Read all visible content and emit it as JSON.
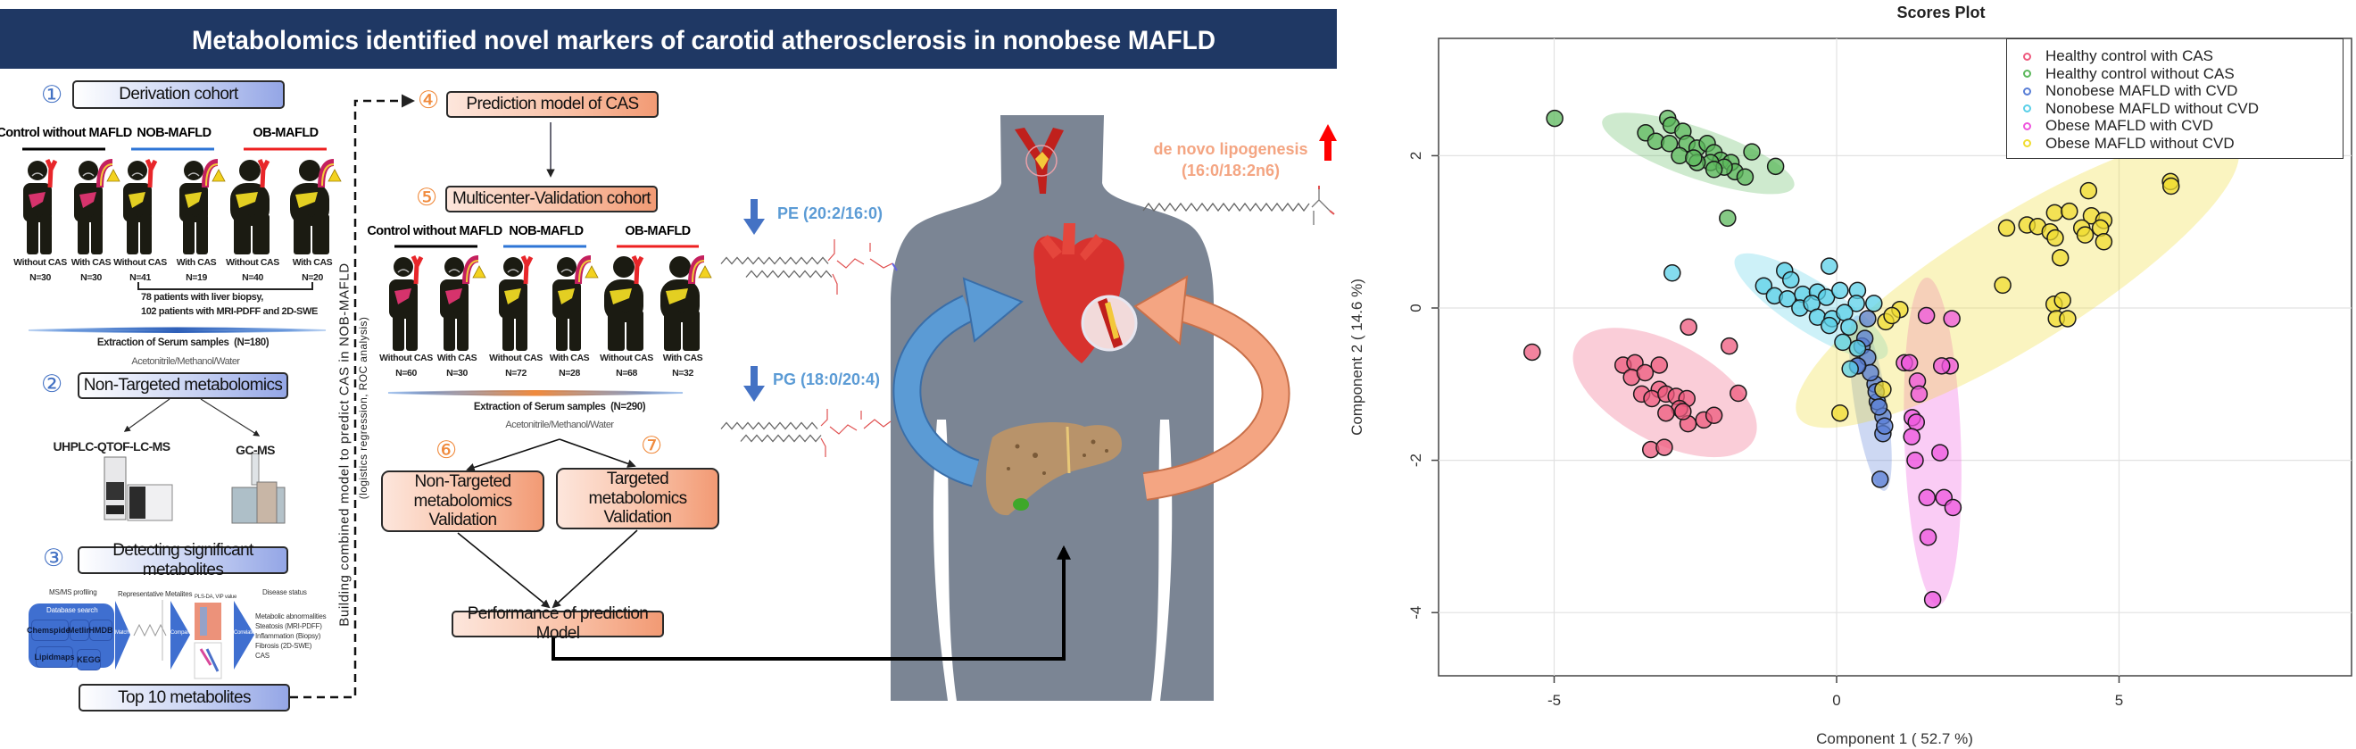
{
  "title": "Metabolomics identified novel markers of carotid atherosclerosis in nonobese MAFLD",
  "derivation": {
    "num": "①",
    "title": "Derivation cohort",
    "groups": [
      {
        "name": "Control without MAFLD",
        "color": "#000000"
      },
      {
        "name": "NOB-MAFLD",
        "color": "#2e75d6"
      },
      {
        "name": "OB-MAFLD",
        "color": "#ee2020"
      }
    ],
    "subjects": [
      {
        "label": "Without CAS",
        "n": "N=30",
        "liver": "#d6336c",
        "obese": false,
        "cas": false
      },
      {
        "label": "With CAS",
        "n": "N=30",
        "liver": "#d6336c",
        "obese": false,
        "cas": true
      },
      {
        "label": "Without CAS",
        "n": "N=41",
        "liver": "#e3cf22",
        "obese": false,
        "cas": false
      },
      {
        "label": "With CAS",
        "n": "N=19",
        "liver": "#e3cf22",
        "obese": false,
        "cas": true
      },
      {
        "label": "Without CAS",
        "n": "N=40",
        "liver": "#e3cf22",
        "obese": true,
        "cas": false
      },
      {
        "label": "With CAS",
        "n": "N=20",
        "liver": "#e3cf22",
        "obese": true,
        "cas": true
      }
    ],
    "note": [
      "78 patients with liver biopsy,",
      "102 patients with MRI-PDFF and 2D-SWE"
    ],
    "extraction": "Extraction of Serum samples",
    "extraction_n": "(N=180)",
    "solvent": "Acetonitrile/Methanol/Water"
  },
  "step2": {
    "num": "②",
    "title": "Non-Targeted metabolomics",
    "instruments": [
      "UHPLC-QTOF-LC-MS",
      "GC-MS"
    ]
  },
  "step3": {
    "num": "③",
    "title": "Detecting significant metabolites",
    "workflow": {
      "ms_label": "MS/MS profiling",
      "db_label": "Database search",
      "databases": [
        "Chemspider",
        "Metlin",
        "HMDB",
        "Lipidmaps",
        "KEGG"
      ],
      "rep_label": "Representative Metalites",
      "pls_label": "PLS-DA, VIP value",
      "disease_label": "Disease status",
      "arrows": [
        "Match",
        "Compare",
        "Correlate"
      ],
      "disease_items": [
        "Metabolic abnormalities",
        "Steatosis (MRI-PDFF)",
        "Inflammation (Biopsy)",
        "Fibrosis (2D-SWE)",
        "CAS"
      ]
    },
    "top10": "Top 10 metabolites"
  },
  "side_text": [
    "Building combined model to predict CAS in NOB-MAFLD",
    "(logistics regression, ROC analysis)"
  ],
  "step4": {
    "num": "④",
    "title": "Prediction model of CAS"
  },
  "validation": {
    "num": "⑤",
    "title": "Multicenter-Validation cohort",
    "groups": [
      {
        "name": "Control without MAFLD",
        "color": "#000000"
      },
      {
        "name": "NOB-MAFLD",
        "color": "#2e75d6"
      },
      {
        "name": "OB-MAFLD",
        "color": "#ee2020"
      }
    ],
    "subjects": [
      {
        "label": "Without CAS",
        "n": "N=60",
        "liver": "#d6336c",
        "obese": false,
        "cas": false
      },
      {
        "label": "With CAS",
        "n": "N=30",
        "liver": "#d6336c",
        "obese": false,
        "cas": true
      },
      {
        "label": "Without CAS",
        "n": "N=72",
        "liver": "#e3cf22",
        "obese": false,
        "cas": false
      },
      {
        "label": "With CAS",
        "n": "N=28",
        "liver": "#e3cf22",
        "obese": false,
        "cas": true
      },
      {
        "label": "Without CAS",
        "n": "N=68",
        "liver": "#e3cf22",
        "obese": true,
        "cas": false
      },
      {
        "label": "With CAS",
        "n": "N=32",
        "liver": "#e3cf22",
        "obese": true,
        "cas": true
      }
    ],
    "extraction": "Extraction of Serum samples",
    "extraction_n": "(N=290)",
    "solvent": "Acetonitrile/Methanol/Water"
  },
  "step6": {
    "num": "⑥",
    "title": [
      "Non-Targeted",
      "metabolomics Validation"
    ]
  },
  "step7": {
    "num": "⑦",
    "title": [
      "Targeted",
      "metabolomics Validation"
    ]
  },
  "performance": "Performance of prediction Model",
  "markers": {
    "pe": "PE (20:2/16:0)",
    "pg": "PG (18:0/20:4)",
    "dnl": [
      "de novo lipogenesis",
      "(16:0/18:2n6)"
    ],
    "down_color": "#4472c4",
    "up_color": "#ff0000",
    "pe_pg_color": "#5b9bd5",
    "dnl_color": "#f4a582"
  },
  "chart_data": {
    "type": "scatter",
    "title": "Scores Plot",
    "xlabel": "Component 1 ( 52.7 %)",
    "ylabel": "Component 2 ( 14.6 %)",
    "xlim": [
      -7.1,
      9.2
    ],
    "ylim": [
      -4.83,
      3.54
    ],
    "xticks": [
      -5,
      0,
      5
    ],
    "yticks": [
      2,
      0,
      -2,
      -4
    ],
    "grid": true,
    "legend_position": "top-right",
    "series": [
      {
        "name": "Healthy control with CAS",
        "color": "#ee5a7e",
        "ellipse": {
          "center": [
            -3.04,
            -1.11
          ],
          "axis1": [
            1.6,
            -0.58
          ],
          "axis2": [
            0.3,
            0.62
          ]
        },
        "points": [
          [
            -5.39,
            -0.58
          ],
          [
            -2.62,
            -0.25
          ],
          [
            -1.9,
            -0.5
          ],
          [
            -1.74,
            -1.12
          ],
          [
            -3.78,
            -0.75
          ],
          [
            -3.57,
            -0.72
          ],
          [
            -3.14,
            -0.75
          ],
          [
            -3.63,
            -0.91
          ],
          [
            -3.39,
            -0.85
          ],
          [
            -3.14,
            -1.07
          ],
          [
            -3.45,
            -1.13
          ],
          [
            -3.27,
            -1.19
          ],
          [
            -3.02,
            -1.13
          ],
          [
            -2.84,
            -1.16
          ],
          [
            -2.65,
            -1.19
          ],
          [
            -2.78,
            -1.32
          ],
          [
            -3.02,
            -1.38
          ],
          [
            -2.63,
            -1.52
          ],
          [
            -2.35,
            -1.47
          ],
          [
            -2.17,
            -1.41
          ],
          [
            -3.29,
            -1.86
          ],
          [
            -3.05,
            -1.83
          ],
          [
            -2.72,
            -1.36
          ]
        ]
      },
      {
        "name": "Healthy control without CAS",
        "color": "#5cb85c",
        "ellipse": {
          "center": [
            -2.45,
            2.03
          ],
          "axis1": [
            1.7,
            -0.42
          ],
          "axis2": [
            0.08,
            0.33
          ]
        },
        "points": [
          [
            -4.99,
            2.49
          ],
          [
            -2.99,
            2.49
          ],
          [
            -2.93,
            2.4
          ],
          [
            -3.38,
            2.3
          ],
          [
            -3.2,
            2.19
          ],
          [
            -2.96,
            2.16
          ],
          [
            -2.72,
            2.32
          ],
          [
            -2.65,
            2.16
          ],
          [
            -2.78,
            2.0
          ],
          [
            -2.47,
            2.1
          ],
          [
            -2.29,
            2.16
          ],
          [
            -2.17,
            2.04
          ],
          [
            -2.05,
            1.94
          ],
          [
            -2.23,
            1.91
          ],
          [
            -2.47,
            1.91
          ],
          [
            -2.53,
            1.97
          ],
          [
            -1.87,
            1.91
          ],
          [
            -1.8,
            1.79
          ],
          [
            -1.99,
            1.85
          ],
          [
            -2.17,
            1.82
          ],
          [
            -1.5,
            2.05
          ],
          [
            -1.08,
            1.86
          ],
          [
            -1.93,
            1.18
          ],
          [
            -1.62,
            1.72
          ]
        ]
      },
      {
        "name": "Nonobese MAFLD with CVD",
        "color": "#5a7fd6",
        "ellipse": {
          "center": [
            0.6,
            -1.25
          ],
          "axis1": [
            0.25,
            -1.15
          ],
          "axis2": [
            0.28,
            0.05
          ]
        },
        "points": [
          [
            0.38,
            -0.76
          ],
          [
            0.68,
            -1.0
          ],
          [
            0.72,
            -1.23
          ],
          [
            0.82,
            -1.42
          ],
          [
            0.82,
            -1.65
          ],
          [
            0.77,
            -2.25
          ],
          [
            0.45,
            -0.5
          ],
          [
            0.55,
            -0.65
          ],
          [
            0.6,
            -0.85
          ],
          [
            0.7,
            -1.1
          ],
          [
            0.75,
            -1.3
          ],
          [
            0.85,
            -1.55
          ],
          [
            0.5,
            -0.4
          ],
          [
            0.55,
            -0.14
          ],
          [
            0.37,
            -0.76
          ]
        ]
      },
      {
        "name": "Nonobese MAFLD without CVD",
        "color": "#5bd0e8",
        "ellipse": {
          "center": [
            -0.45,
            0.02
          ],
          "axis1": [
            1.35,
            -0.62
          ],
          "axis2": [
            0.15,
            0.32
          ]
        },
        "points": [
          [
            -2.91,
            0.46
          ],
          [
            -0.13,
            0.55
          ],
          [
            -1.29,
            0.29
          ],
          [
            -0.92,
            0.49
          ],
          [
            -0.81,
            0.37
          ],
          [
            -1.1,
            0.16
          ],
          [
            -0.87,
            0.12
          ],
          [
            -0.6,
            0.18
          ],
          [
            -0.34,
            0.21
          ],
          [
            -0.65,
            0.0
          ],
          [
            -0.44,
            0.06
          ],
          [
            -0.18,
            0.14
          ],
          [
            0.06,
            0.23
          ],
          [
            0.37,
            0.23
          ],
          [
            0.35,
            0.06
          ],
          [
            0.66,
            0.06
          ],
          [
            -0.34,
            -0.12
          ],
          [
            -0.08,
            -0.14
          ],
          [
            0.14,
            -0.06
          ],
          [
            -0.13,
            -0.23
          ],
          [
            0.22,
            -0.25
          ],
          [
            0.11,
            -0.45
          ],
          [
            0.37,
            -0.53
          ],
          [
            0.24,
            -0.8
          ]
        ]
      },
      {
        "name": "Obese MAFLD with CVD",
        "color": "#ee55dd",
        "ellipse": {
          "center": [
            1.7,
            -1.75
          ],
          "axis1": [
            0.1,
            -2.15
          ],
          "axis2": [
            0.5,
            0.0
          ]
        },
        "points": [
          [
            1.59,
            -0.1
          ],
          [
            2.04,
            -0.14
          ],
          [
            1.2,
            -0.72
          ],
          [
            2.01,
            -0.76
          ],
          [
            1.29,
            -0.72
          ],
          [
            1.86,
            -0.76
          ],
          [
            1.43,
            -0.96
          ],
          [
            1.46,
            -1.13
          ],
          [
            1.34,
            -1.44
          ],
          [
            1.41,
            -1.5
          ],
          [
            1.33,
            -1.69
          ],
          [
            1.83,
            -1.9
          ],
          [
            1.39,
            -2.0
          ],
          [
            1.6,
            -2.49
          ],
          [
            1.9,
            -2.49
          ],
          [
            2.06,
            -2.62
          ],
          [
            1.62,
            -3.01
          ],
          [
            1.7,
            -3.83
          ]
        ]
      },
      {
        "name": "Obese MAFLD without CVD",
        "color": "#f0dc30",
        "ellipse": {
          "center": [
            3.2,
            0.35
          ],
          "axis1": [
            3.9,
            1.75
          ],
          "axis2": [
            -0.42,
            0.8
          ]
        },
        "points": [
          [
            5.91,
            1.66
          ],
          [
            5.92,
            1.6
          ],
          [
            4.46,
            1.54
          ],
          [
            3.86,
            1.25
          ],
          [
            4.12,
            1.27
          ],
          [
            4.51,
            1.21
          ],
          [
            4.73,
            1.15
          ],
          [
            3.01,
            1.05
          ],
          [
            3.37,
            1.09
          ],
          [
            3.56,
            1.07
          ],
          [
            3.78,
            1.0
          ],
          [
            3.87,
            0.92
          ],
          [
            4.34,
            1.05
          ],
          [
            4.4,
            0.96
          ],
          [
            4.67,
            1.05
          ],
          [
            4.73,
            0.87
          ],
          [
            3.96,
            0.66
          ],
          [
            2.94,
            0.3
          ],
          [
            3.85,
            0.05
          ],
          [
            4.0,
            0.1
          ],
          [
            3.89,
            -0.14
          ],
          [
            4.09,
            -0.14
          ],
          [
            1.12,
            -0.02
          ],
          [
            0.87,
            -0.18
          ],
          [
            0.98,
            -0.1
          ],
          [
            0.06,
            -1.38
          ],
          [
            0.82,
            -1.07
          ]
        ]
      }
    ]
  }
}
